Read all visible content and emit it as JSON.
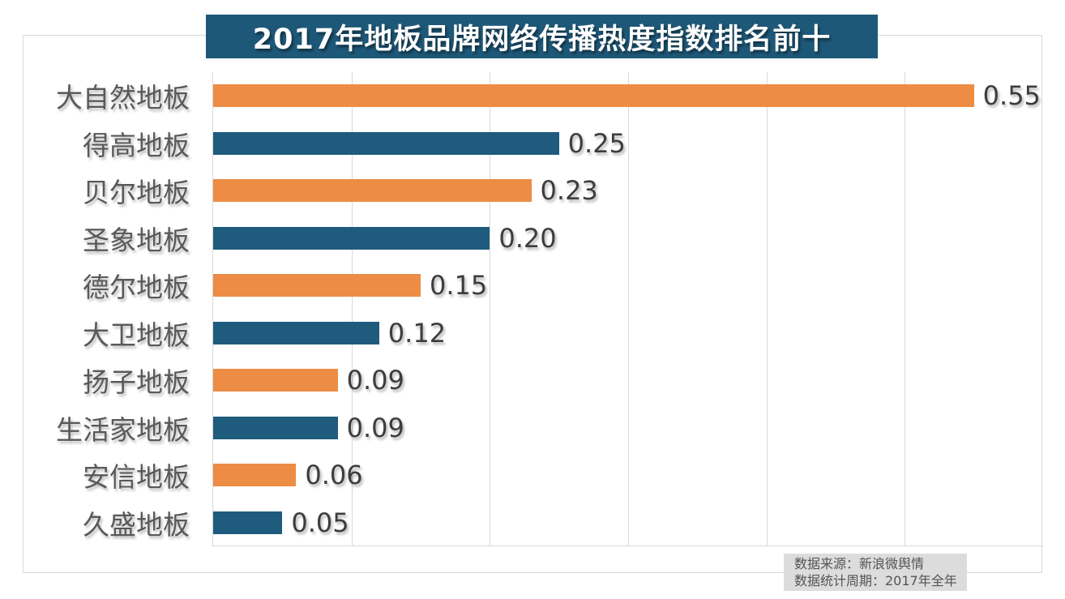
{
  "page": {
    "background": "#FFFFFF",
    "frame_border_color": "#D9D9D9"
  },
  "title": {
    "text": "2017年地板品牌网络传播热度指数排名前十",
    "bg_color": "#1E5878",
    "text_color": "#FFFFFF"
  },
  "source_note": {
    "line1": "数据来源：新浪微舆情",
    "line2": "数据统计周期：2017年全年",
    "bg_color": "#DCDCDC",
    "text_color": "#545454"
  },
  "chart_data": {
    "type": "bar",
    "orientation": "horizontal",
    "title": "2017年地板品牌网络传播热度指数排名前十",
    "categories": [
      "大自然地板",
      "得高地板",
      "贝尔地板",
      "圣象地板",
      "德尔地板",
      "大卫地板",
      "扬子地板",
      "生活家地板",
      "安信地板",
      "久盛地板"
    ],
    "values": [
      0.55,
      0.25,
      0.23,
      0.2,
      0.15,
      0.12,
      0.09,
      0.09,
      0.06,
      0.05
    ],
    "value_labels": [
      "0.55",
      "0.25",
      "0.23",
      "0.20",
      "0.15",
      "0.12",
      "0.09",
      "0.09",
      "0.06",
      "0.05"
    ],
    "xlabel": "",
    "ylabel": "",
    "xlim": [
      0,
      0.6
    ],
    "gridline_interval": 0.1,
    "grid": true,
    "legend": false,
    "bar_colors_alternate": [
      "#ED8C44",
      "#1F5B7D"
    ],
    "gridline_color": "#D9D9D9",
    "category_label_color": "#595959",
    "value_label_color": "#3D3D3D"
  }
}
